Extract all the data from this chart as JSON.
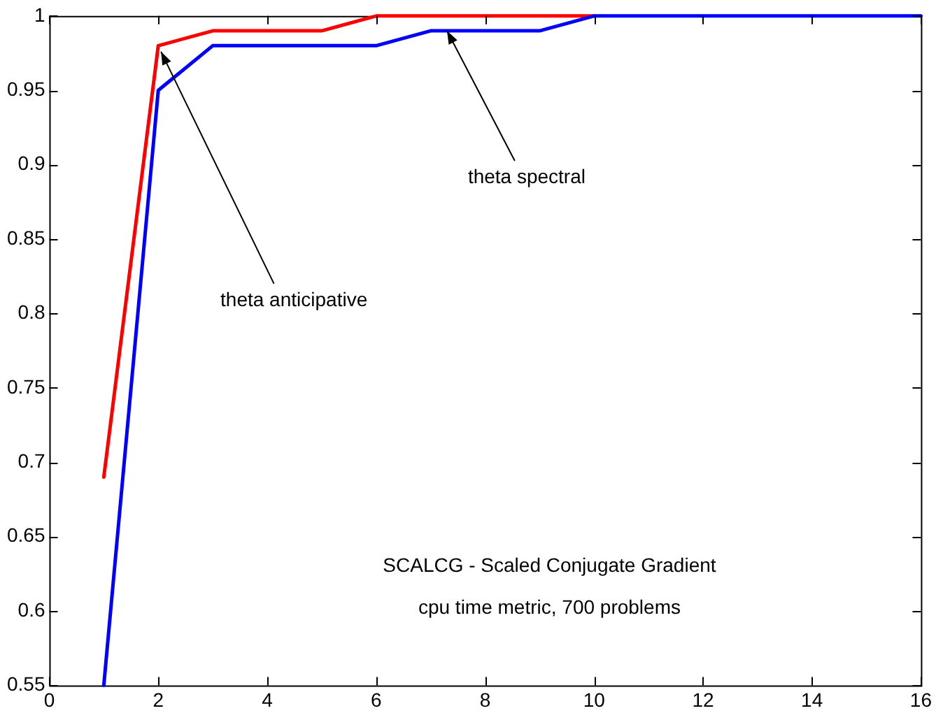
{
  "chart_data": {
    "type": "line",
    "series": [
      {
        "color": "#0000ff",
        "x": [
          1,
          2,
          3,
          6,
          7,
          9,
          10,
          16
        ],
        "values": [
          0.55,
          0.95,
          0.98,
          0.98,
          0.99,
          0.99,
          1,
          1
        ]
      },
      {
        "color": "#ff0000",
        "x": [
          1,
          2,
          3,
          5,
          6,
          10
        ],
        "values": [
          0.69,
          0.98,
          0.99,
          0.99,
          1,
          1
        ]
      }
    ],
    "annotations": [
      {
        "text": "theta anticipative",
        "x": 2.05,
        "y": 0.976
      },
      {
        "text": "theta spectral",
        "x": 7.3,
        "y": 0.99
      },
      "SCALCG - Scaled Conjugate Gradient",
      "cpu time metric, 700 problems"
    ],
    "xlim": [
      0,
      16
    ],
    "xticks": [
      0,
      2,
      4,
      6,
      8,
      10,
      12,
      14,
      16
    ],
    "ylim": [
      0.55,
      1
    ],
    "yticks": [
      0.55,
      0.6,
      0.65,
      0.7,
      0.75,
      0.8,
      0.85,
      0.9,
      0.95,
      1
    ],
    "grid": false,
    "legend": false,
    "marker": "none",
    "line_style": "solid"
  }
}
